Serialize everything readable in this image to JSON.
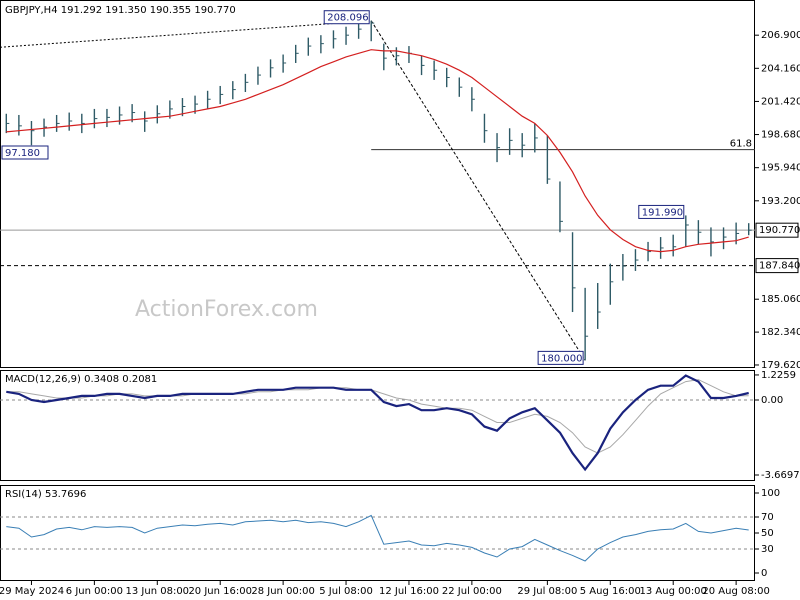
{
  "chart_data": {
    "type": "ohlc",
    "title": "GBPJPY,H4  191.292 191.350 190.355 190.770",
    "watermark": "ActionForex.com",
    "categories": [
      null,
      null,
      "29 May 2024",
      null,
      null,
      null,
      null,
      "6 Jun 00:00",
      null,
      null,
      null,
      null,
      "13 Jun 08:00",
      null,
      null,
      null,
      null,
      "20 Jun 16:00",
      null,
      null,
      null,
      null,
      "28 Jun 00:00",
      null,
      null,
      null,
      null,
      "5 Jul 08:00",
      null,
      null,
      null,
      null,
      "12 Jul 16:00",
      null,
      null,
      null,
      null,
      "22 Jul 00:00",
      null,
      null,
      null,
      null,
      null,
      "29 Jul 08:00",
      null,
      null,
      null,
      null,
      "5 Aug 16:00",
      null,
      null,
      null,
      null,
      "13 Aug 00:00",
      null,
      null,
      null,
      null,
      "20 Aug 08:00",
      null
    ],
    "high": [
      200.4,
      200.3,
      199.8,
      200.0,
      200.3,
      200.5,
      200.4,
      200.8,
      200.8,
      201.0,
      201.2,
      200.6,
      201.1,
      201.5,
      201.7,
      201.9,
      202.3,
      202.7,
      203.1,
      203.7,
      204.3,
      204.9,
      205.3,
      206.1,
      206.7,
      206.9,
      207.3,
      207.6,
      208.0,
      208.096,
      206.2,
      205.9,
      206.0,
      205.2,
      204.8,
      204.2,
      203.4,
      202.6,
      200.4,
      198.8,
      199.2,
      198.8,
      199.6,
      198.6,
      194.8,
      190.6,
      186.0,
      186.4,
      188.0,
      188.8,
      189.2,
      189.8,
      190.2,
      190.4,
      191.99,
      191.6,
      191.0,
      191.0,
      191.4,
      191.35
    ],
    "low": [
      198.8,
      198.6,
      197.8,
      198.5,
      198.9,
      199.0,
      198.8,
      199.2,
      199.3,
      199.5,
      199.7,
      198.9,
      199.6,
      200.0,
      200.2,
      200.4,
      200.8,
      201.2,
      201.6,
      202.2,
      202.8,
      203.4,
      203.8,
      204.6,
      205.2,
      205.4,
      205.8,
      206.1,
      206.6,
      206.4,
      204.0,
      204.4,
      204.6,
      203.6,
      203.2,
      202.6,
      201.8,
      200.6,
      198.0,
      196.4,
      197.0,
      196.8,
      197.2,
      194.6,
      190.6,
      184.0,
      180.0,
      182.6,
      184.6,
      186.6,
      187.4,
      188.2,
      188.4,
      188.6,
      189.4,
      189.6,
      188.6,
      189.2,
      189.6,
      190.355
    ],
    "close": [
      199.6,
      199.4,
      199.0,
      199.3,
      199.6,
      199.8,
      199.6,
      200.0,
      200.1,
      200.3,
      200.5,
      199.8,
      200.4,
      200.8,
      201.0,
      201.2,
      201.6,
      202.0,
      202.4,
      203.0,
      203.6,
      204.2,
      204.6,
      205.4,
      206.0,
      206.2,
      206.6,
      206.9,
      207.4,
      207.9,
      205.0,
      205.2,
      205.4,
      204.4,
      204.0,
      203.4,
      202.6,
      201.6,
      199.0,
      197.6,
      198.2,
      197.8,
      198.4,
      195.0,
      191.5,
      186.0,
      182.0,
      184.0,
      186.5,
      187.8,
      188.3,
      189.0,
      189.3,
      189.4,
      191.2,
      190.6,
      189.8,
      190.2,
      190.5,
      190.77
    ],
    "bar_color": "#2e5a66",
    "ma": {
      "color": "#d42020",
      "values": [
        198.9,
        199.0,
        199.1,
        199.2,
        199.3,
        199.4,
        199.5,
        199.6,
        199.7,
        199.8,
        199.9,
        200.0,
        200.1,
        200.2,
        200.4,
        200.6,
        200.8,
        201.0,
        201.3,
        201.6,
        202.0,
        202.4,
        202.8,
        203.3,
        203.8,
        204.3,
        204.7,
        205.1,
        205.4,
        205.7,
        205.6,
        205.6,
        205.4,
        205.2,
        204.9,
        204.5,
        204.0,
        203.4,
        202.6,
        201.8,
        201.0,
        200.2,
        199.6,
        198.6,
        197.2,
        195.6,
        193.6,
        192.0,
        190.8,
        190.0,
        189.4,
        189.1,
        189.0,
        189.1,
        189.4,
        189.6,
        189.7,
        189.8,
        189.9,
        190.2
      ]
    },
    "ylim": [
      179.37,
      209.81
    ],
    "yticks": [
      {
        "value": 206.9,
        "label": "206.900"
      },
      {
        "value": 204.16,
        "label": "204.160"
      },
      {
        "value": 201.42,
        "label": "201.420"
      },
      {
        "value": 198.68,
        "label": "198.680"
      },
      {
        "value": 195.94,
        "label": "195.940"
      },
      {
        "value": 193.2,
        "label": "193.200"
      },
      {
        "value": 185.06,
        "label": "185.060"
      },
      {
        "value": 182.34,
        "label": "182.340"
      },
      {
        "value": 179.62,
        "label": "179.620"
      }
    ],
    "annotations": [
      {
        "text": "208.096",
        "value": 208.096,
        "at": 29
      },
      {
        "text": "180.000",
        "value": 180.0,
        "at": 46
      },
      {
        "text": "191.990",
        "value": 191.99,
        "at": 54
      }
    ],
    "left_label": "97.180",
    "levels": [
      {
        "label": "190.770",
        "value": 190.77,
        "style": "solid"
      },
      {
        "label": "187.840",
        "value": 187.84,
        "style": "dashed"
      }
    ],
    "fib": {
      "label": "61.8",
      "price": 197.43,
      "from": 29
    },
    "trendline_start_price": 205.9,
    "macd": {
      "title": "MACD(12,26,9) 0.3408 0.2081",
      "ylim": [
        -3.914,
        1.468
      ],
      "yticks": [
        1.2259,
        {
          "value": 0,
          "label": "0.00"
        },
        -3.6697
      ],
      "series": [
        {
          "color": "#1a237e",
          "values": [
            0.4,
            0.3,
            0.0,
            -0.1,
            0.0,
            0.1,
            0.2,
            0.2,
            0.3,
            0.3,
            0.2,
            0.1,
            0.2,
            0.2,
            0.3,
            0.3,
            0.3,
            0.3,
            0.3,
            0.4,
            0.5,
            0.5,
            0.5,
            0.6,
            0.6,
            0.6,
            0.6,
            0.5,
            0.5,
            0.5,
            -0.1,
            -0.3,
            -0.2,
            -0.5,
            -0.5,
            -0.4,
            -0.5,
            -0.7,
            -1.3,
            -1.5,
            -0.9,
            -0.6,
            -0.4,
            -1.0,
            -1.6,
            -2.6,
            -3.4,
            -2.6,
            -1.4,
            -0.6,
            0.0,
            0.5,
            0.7,
            0.7,
            1.2,
            0.9,
            0.1,
            0.1,
            0.2,
            0.3408
          ]
        },
        {
          "color": "#a8a8a8",
          "values": [
            0.4,
            0.4,
            0.3,
            0.2,
            0.1,
            0.1,
            0.1,
            0.2,
            0.2,
            0.3,
            0.3,
            0.2,
            0.2,
            0.2,
            0.2,
            0.3,
            0.3,
            0.3,
            0.3,
            0.3,
            0.4,
            0.4,
            0.5,
            0.5,
            0.5,
            0.6,
            0.6,
            0.6,
            0.5,
            0.5,
            0.3,
            0.1,
            0.0,
            -0.2,
            -0.3,
            -0.4,
            -0.4,
            -0.5,
            -0.8,
            -1.1,
            -1.1,
            -0.9,
            -0.7,
            -0.8,
            -1.1,
            -1.6,
            -2.3,
            -2.6,
            -2.3,
            -1.7,
            -1.0,
            -0.3,
            0.3,
            0.6,
            0.9,
            1.0,
            0.7,
            0.4,
            0.2,
            0.2081
          ]
        }
      ]
    },
    "rsi": {
      "title": "RSI(14) 53.7696",
      "color": "#3a7fb5",
      "ylim": [
        -8.75,
        110
      ],
      "yticks": [
        100,
        70,
        50,
        30,
        0
      ],
      "guides": [
        70,
        30
      ],
      "values": [
        58,
        56,
        45,
        48,
        55,
        57,
        54,
        58,
        57,
        58,
        57,
        50,
        56,
        58,
        60,
        59,
        61,
        62,
        60,
        64,
        65,
        66,
        64,
        66,
        63,
        64,
        62,
        58,
        64,
        72,
        36,
        38,
        40,
        35,
        34,
        37,
        35,
        32,
        25,
        20,
        30,
        33,
        42,
        35,
        28,
        22,
        15,
        30,
        38,
        45,
        48,
        52,
        54,
        55,
        62,
        52,
        50,
        53,
        56,
        53.7696
      ]
    }
  }
}
